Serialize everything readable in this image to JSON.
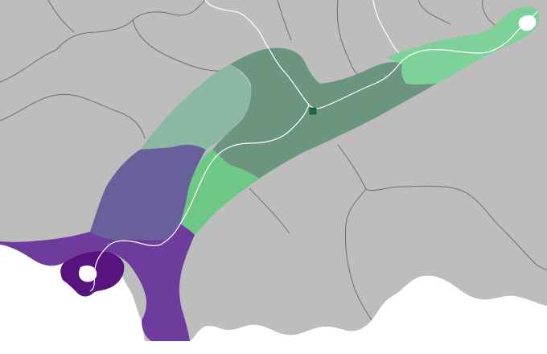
{
  "map": {
    "colors": {
      "background_sea": "#ffffff",
      "land_neutral": "#bdbdbd",
      "border_line": "#6e6e6e",
      "river": "#ffffff",
      "region_dark_green": "#6b957f",
      "region_sage_green": "#8ab8a2",
      "region_light_green": "#7fd19a",
      "region_bright_green": "#6cc884",
      "region_slate_purple": "#67609a",
      "region_purple": "#6d3c9c",
      "region_dark_purple": "#58137f",
      "city_marker": "#1a6a3a"
    },
    "regions": [
      "region-dark-green",
      "region-sage-green",
      "region-light-green",
      "region-bright-green",
      "region-slate-purple",
      "region-purple",
      "region-dark-purple"
    ],
    "markers": [
      "city-marker"
    ]
  }
}
